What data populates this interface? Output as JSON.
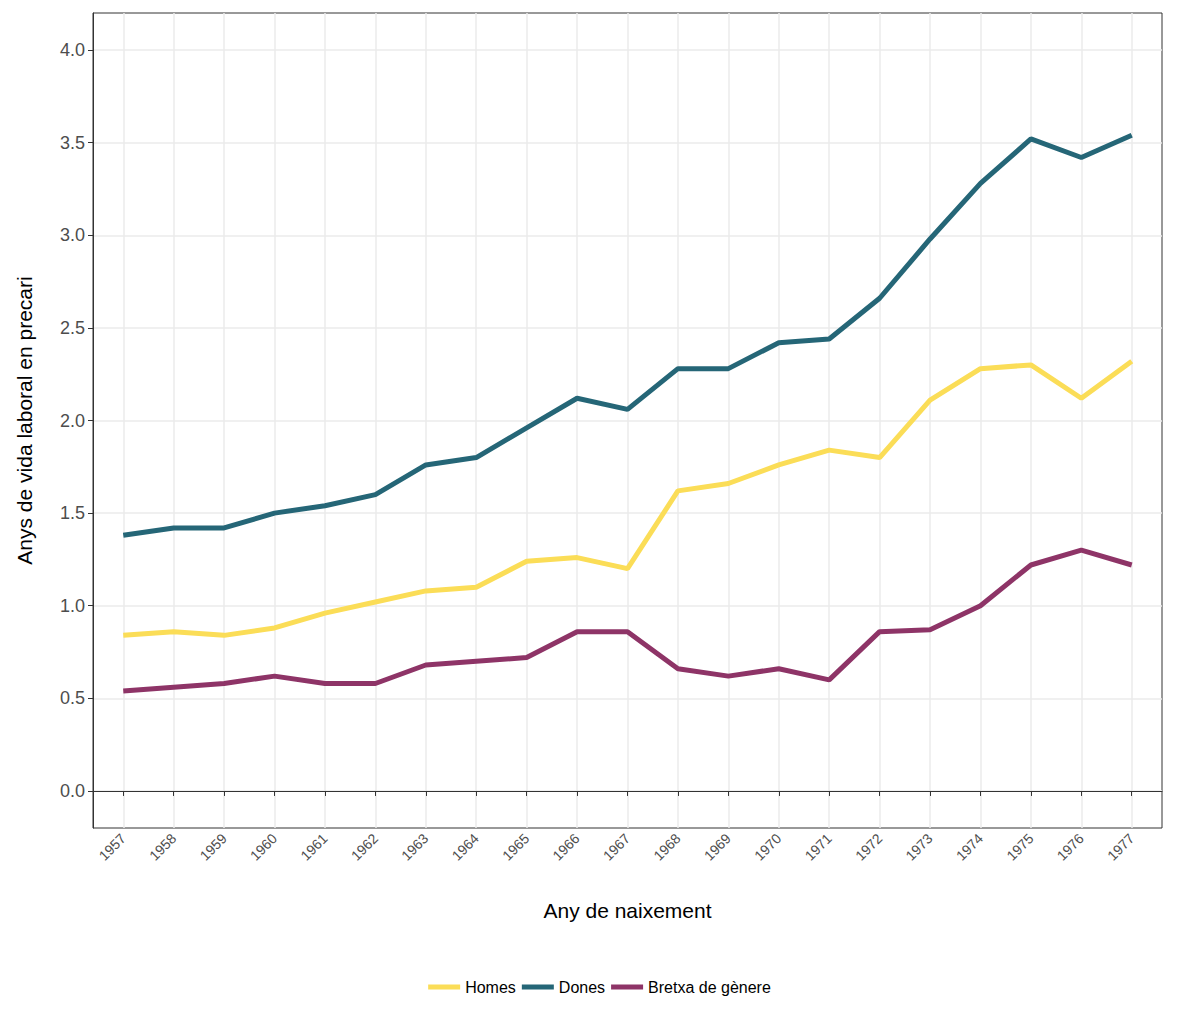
{
  "chart_data": {
    "type": "line",
    "x_label": "Any de naixement",
    "y_label": "Anys de vida laboral en precari",
    "x": [
      1957,
      1958,
      1959,
      1960,
      1961,
      1962,
      1963,
      1964,
      1965,
      1966,
      1967,
      1968,
      1969,
      1970,
      1971,
      1972,
      1973,
      1974,
      1975,
      1976,
      1977
    ],
    "xlim": [
      1956.4,
      1977.6
    ],
    "xticks": [
      1957,
      1958,
      1959,
      1960,
      1961,
      1962,
      1963,
      1964,
      1965,
      1966,
      1967,
      1968,
      1969,
      1970,
      1971,
      1972,
      1973,
      1974,
      1975,
      1976,
      1977
    ],
    "ylim": [
      -0.2,
      4.2
    ],
    "yticks": [
      {
        "value": 0,
        "label": "0.0"
      },
      0.5,
      {
        "value": 1,
        "label": "1.0"
      },
      1.5,
      {
        "value": 2,
        "label": "2.0"
      },
      2.5,
      {
        "value": 3,
        "label": "3.0"
      },
      3.5,
      {
        "value": 4,
        "label": "4.0"
      }
    ],
    "grid": true,
    "legend": "bottom",
    "series": [
      {
        "name": "Homes",
        "color": "#fbdd57",
        "values": [
          0.84,
          0.86,
          0.84,
          0.88,
          0.96,
          1.02,
          1.08,
          1.1,
          1.24,
          1.26,
          1.2,
          1.62,
          1.66,
          1.76,
          1.84,
          1.8,
          2.11,
          2.28,
          2.3,
          2.12,
          2.32
        ]
      },
      {
        "name": "Dones",
        "color": "#256677",
        "values": [
          1.38,
          1.42,
          1.42,
          1.5,
          1.54,
          1.6,
          1.76,
          1.8,
          1.96,
          2.12,
          2.06,
          2.28,
          2.28,
          2.42,
          2.44,
          2.66,
          2.98,
          3.28,
          3.52,
          3.42,
          3.54
        ]
      },
      {
        "name": "Bretxa de gènere",
        "color": "#8e3467",
        "values": [
          0.54,
          0.56,
          0.58,
          0.62,
          0.58,
          0.58,
          0.68,
          0.7,
          0.72,
          0.86,
          0.86,
          0.66,
          0.62,
          0.66,
          0.6,
          0.86,
          0.87,
          1.0,
          1.22,
          1.3,
          1.22
        ]
      }
    ]
  }
}
